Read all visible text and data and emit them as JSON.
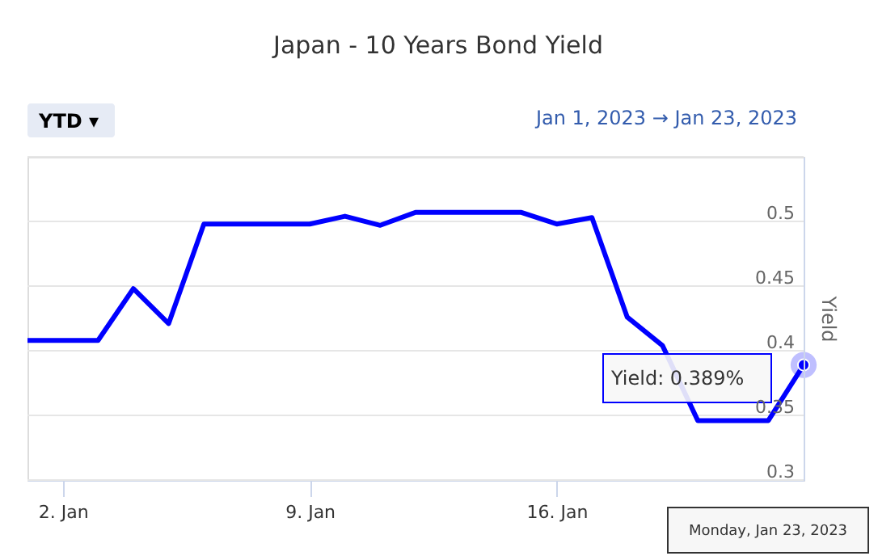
{
  "chart_data": {
    "type": "line",
    "title": "Japan - 10 Years Bond Yield",
    "ylabel": "Yield",
    "x": [
      "2023-01-01",
      "2023-01-02",
      "2023-01-03",
      "2023-01-04",
      "2023-01-05",
      "2023-01-06",
      "2023-01-07",
      "2023-01-08",
      "2023-01-09",
      "2023-01-10",
      "2023-01-11",
      "2023-01-12",
      "2023-01-13",
      "2023-01-14",
      "2023-01-15",
      "2023-01-16",
      "2023-01-17",
      "2023-01-18",
      "2023-01-19",
      "2023-01-20",
      "2023-01-21",
      "2023-01-22",
      "2023-01-23"
    ],
    "series": [
      {
        "color": "#0000ff",
        "values": [
          0.408,
          0.408,
          0.408,
          0.448,
          0.421,
          0.498,
          0.498,
          0.498,
          0.498,
          0.504,
          0.497,
          0.507,
          0.507,
          0.507,
          0.507,
          0.498,
          0.503,
          0.426,
          0.404,
          0.346,
          0.346,
          0.346,
          0.389
        ]
      }
    ],
    "xlim": [
      "2023-01-01",
      "2023-01-23"
    ],
    "xticks": [
      {
        "value": "2023-01-02",
        "label": "2. Jan"
      },
      {
        "value": "2023-01-09",
        "label": "9. Jan"
      },
      {
        "value": "2023-01-16",
        "label": "16. Jan"
      }
    ],
    "ylim": [
      0.3,
      0.55
    ],
    "yticks": [
      0.3,
      0.35,
      0.4,
      0.45,
      0.5,
      {
        "value": 0.55,
        "label": null
      }
    ],
    "grid": "y",
    "legend": false,
    "marker": "none",
    "line_style": "solid",
    "annotations": [
      "YTD ▾",
      "Jan 1, 2023  →  Jan 23, 2023",
      "Yield: 0.389%",
      "Monday, Jan 23, 2023"
    ]
  }
}
